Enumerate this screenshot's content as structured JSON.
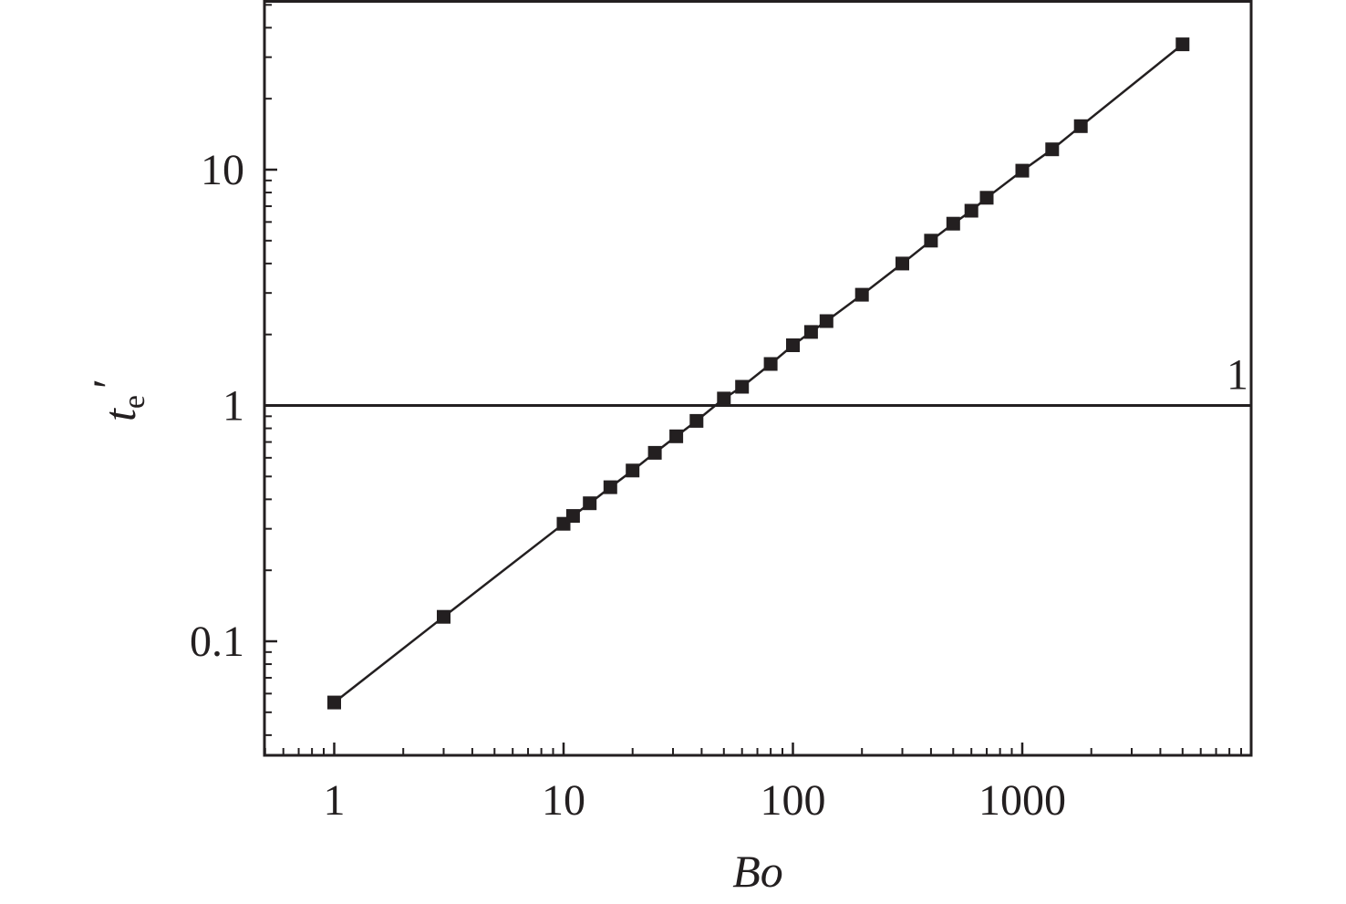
{
  "chart_data": {
    "type": "scatter",
    "xlabel": "Bo",
    "ylabel": {
      "main": "t",
      "sub": "e",
      "prime": "′"
    },
    "xscale": "log",
    "yscale": "log",
    "xlim": [
      0.5,
      9000
    ],
    "ylim": [
      0.032,
      55
    ],
    "x_ticks": [
      {
        "value": 1,
        "label": "1"
      },
      {
        "value": 10,
        "label": "10"
      },
      {
        "value": 100,
        "label": "100"
      },
      {
        "value": 1000,
        "label": "1000"
      }
    ],
    "y_ticks": [
      {
        "value": 0.1,
        "label": "0.1"
      },
      {
        "value": 1,
        "label": "1"
      },
      {
        "value": 10,
        "label": "10"
      }
    ],
    "grid": false,
    "marker": "square",
    "line": "solid",
    "color": "#231f20",
    "series": [
      {
        "x": [
          1,
          3,
          10,
          11,
          13,
          16,
          20,
          25,
          31,
          38,
          50,
          60,
          80,
          100,
          120,
          140,
          200,
          300,
          400,
          500,
          600,
          700,
          1000,
          1350,
          1800,
          5000
        ],
        "y": [
          0.055,
          0.127,
          0.315,
          0.34,
          0.385,
          0.45,
          0.53,
          0.63,
          0.74,
          0.86,
          1.07,
          1.2,
          1.5,
          1.8,
          2.05,
          2.28,
          2.95,
          4.0,
          5.0,
          5.9,
          6.7,
          7.6,
          9.9,
          12.2,
          15.3,
          34
        ]
      }
    ],
    "reference_line": {
      "y": 1,
      "label": "1"
    }
  }
}
